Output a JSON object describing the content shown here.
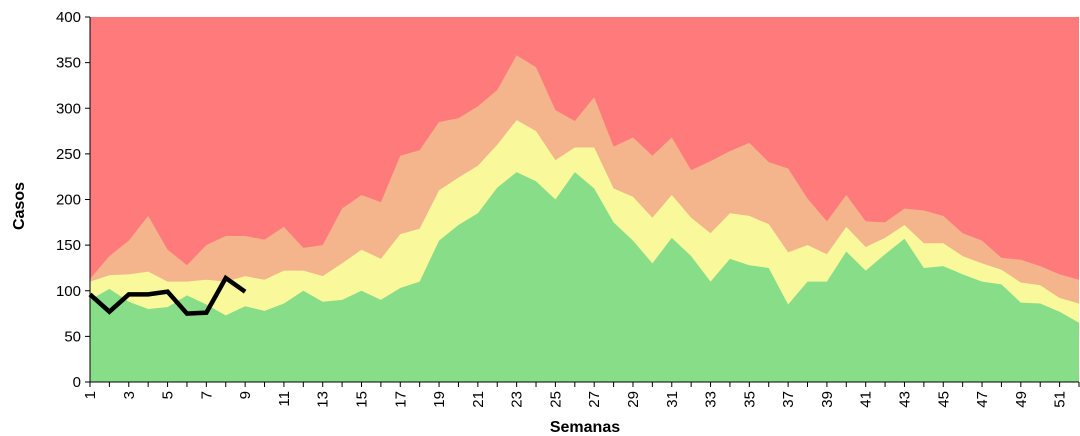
{
  "chart_data": {
    "type": "area",
    "xlabel": "Semanas",
    "ylabel": "Casos",
    "ylim": [
      0,
      400
    ],
    "y_ticks": [
      0,
      50,
      100,
      150,
      200,
      250,
      300,
      350,
      400
    ],
    "x_range": [
      1,
      52
    ],
    "x_tick_labels": [
      "1",
      "3",
      "5",
      "7",
      "9",
      "11",
      "13",
      "15",
      "17",
      "19",
      "21",
      "23",
      "25",
      "27",
      "29",
      "31",
      "33",
      "35",
      "37",
      "39",
      "41",
      "43",
      "45",
      "47",
      "49",
      "51"
    ],
    "weeks": [
      1,
      2,
      3,
      4,
      5,
      6,
      7,
      8,
      9,
      10,
      11,
      12,
      13,
      14,
      15,
      16,
      17,
      18,
      19,
      20,
      21,
      22,
      23,
      24,
      25,
      26,
      27,
      28,
      29,
      30,
      31,
      32,
      33,
      34,
      35,
      36,
      37,
      38,
      39,
      40,
      41,
      42,
      43,
      44,
      45,
      46,
      47,
      48,
      49,
      50,
      51,
      52
    ],
    "bands": [
      {
        "key": "green",
        "color": "#88dd88",
        "values": [
          90,
          102,
          88,
          80,
          82,
          95,
          85,
          73,
          83,
          78,
          86,
          100,
          88,
          90,
          100,
          90,
          103,
          110,
          155,
          172,
          185,
          213,
          230,
          220,
          200,
          230,
          212,
          175,
          155,
          130,
          158,
          138,
          110,
          135,
          128,
          125,
          85,
          110,
          110,
          143,
          122,
          140,
          157,
          125,
          127,
          118,
          110,
          107,
          87,
          86,
          77,
          65
        ]
      },
      {
        "key": "yellow",
        "color": "#f9f99c",
        "values": [
          110,
          117,
          118,
          121,
          110,
          110,
          112,
          110,
          116,
          112,
          122,
          122,
          116,
          130,
          145,
          135,
          162,
          168,
          210,
          224,
          237,
          260,
          287,
          275,
          243,
          257,
          257,
          212,
          203,
          180,
          205,
          180,
          163,
          185,
          182,
          173,
          142,
          150,
          140,
          170,
          148,
          158,
          172,
          152,
          152,
          138,
          130,
          123,
          109,
          106,
          92,
          86
        ]
      },
      {
        "key": "orange",
        "color": "#f5b58c",
        "values": [
          113,
          138,
          155,
          182,
          145,
          128,
          150,
          160,
          160,
          156,
          170,
          147,
          150,
          190,
          205,
          197,
          248,
          254,
          285,
          289,
          302,
          320,
          358,
          345,
          298,
          286,
          312,
          258,
          268,
          248,
          268,
          232,
          242,
          253,
          262,
          241,
          234,
          201,
          176,
          205,
          176,
          175,
          190,
          188,
          182,
          163,
          155,
          136,
          134,
          127,
          118,
          112
        ]
      },
      {
        "key": "red",
        "color": "#ff7b7b",
        "values": [
          400,
          400,
          400,
          400,
          400,
          400,
          400,
          400,
          400,
          400,
          400,
          400,
          400,
          400,
          400,
          400,
          400,
          400,
          400,
          400,
          400,
          400,
          400,
          400,
          400,
          400,
          400,
          400,
          400,
          400,
          400,
          400,
          400,
          400,
          400,
          400,
          400,
          400,
          400,
          400,
          400,
          400,
          400,
          400,
          400,
          400,
          400,
          400,
          400,
          400,
          400,
          400
        ]
      }
    ],
    "series": [
      {
        "color": "#000000",
        "x": [
          1,
          2,
          3,
          4,
          5,
          6,
          7,
          8,
          9
        ],
        "values": [
          96,
          77,
          96,
          96,
          99,
          75,
          76,
          114,
          99
        ]
      }
    ]
  }
}
